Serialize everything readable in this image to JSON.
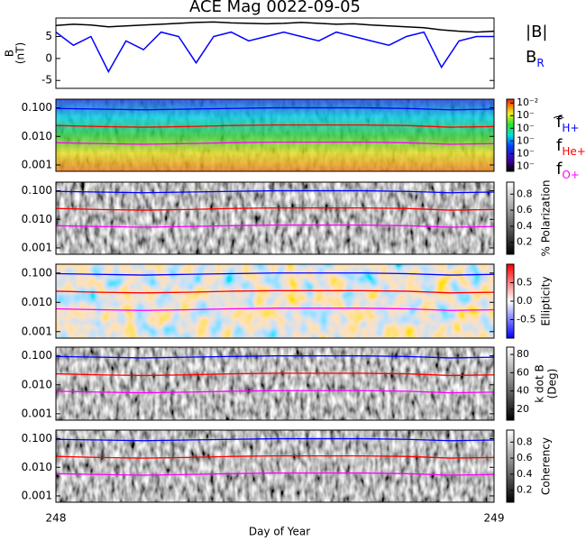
{
  "title": "ACE Mag 0022-09-05",
  "x_label": "Day of Year",
  "xlim": [
    248,
    249
  ],
  "xticks": [
    248,
    249
  ],
  "chart_data": [
    {
      "type": "line",
      "ylabel": "B",
      "ylabel_units": "(nT)",
      "ylim": [
        -6.8,
        9.2
      ],
      "yticks": [
        -5,
        0,
        5
      ],
      "x": [
        248,
        248.04,
        248.08,
        248.12,
        248.16,
        248.2,
        248.24,
        248.28,
        248.32,
        248.36,
        248.4,
        248.44,
        248.48,
        248.52,
        248.56,
        248.6,
        248.64,
        248.68,
        248.72,
        248.76,
        248.8,
        248.84,
        248.88,
        248.92,
        248.96,
        249
      ],
      "series": [
        {
          "name": "|B|",
          "color": "#000000",
          "values": [
            7.5,
            7.8,
            7.6,
            7.2,
            7.4,
            7.6,
            7.8,
            8,
            8.2,
            8.3,
            8.1,
            8,
            7.9,
            8,
            8.2,
            8,
            7.8,
            7.9,
            7.6,
            7.4,
            7.2,
            7,
            6.5,
            6.2,
            6,
            6.2
          ]
        },
        {
          "name": "B",
          "subscript": "R",
          "color": "#0000ff",
          "values": [
            6,
            3,
            5,
            -3,
            4,
            2,
            6,
            5,
            -1,
            5,
            6,
            4,
            5,
            6,
            5,
            4,
            6,
            5,
            4,
            3,
            5,
            6,
            -2,
            4,
            5,
            5
          ]
        }
      ]
    },
    {
      "type": "spectrogram",
      "colormap": "rainbow",
      "colorbar_label": ")",
      "log_y": true,
      "ylim": [
        0.0006,
        0.2
      ],
      "yticks": [
        0.001,
        {
          "value": 0.01,
          "label": "0.010"
        },
        {
          "value": 0.1,
          "label": "0.100"
        }
      ],
      "clim": [
        -7.4,
        -1.7
      ],
      "cticks": [
        {
          "value": -2,
          "label": "10⁻²"
        },
        {
          "value": -3,
          "label": "10⁻"
        },
        {
          "value": -4,
          "label": "10⁻"
        },
        {
          "value": -5,
          "label": "10⁻"
        },
        {
          "value": -6,
          "label": "10⁻"
        },
        {
          "value": -7,
          "label": "10⁻"
        }
      ],
      "x": [
        248,
        248.1,
        248.2,
        248.3,
        248.4,
        248.5,
        248.6,
        248.7,
        248.8,
        248.9,
        249
      ],
      "series": [
        {
          "name": "f",
          "subscript": "H+",
          "color": "#0000ff",
          "values": [
            0.095,
            0.09,
            0.085,
            0.09,
            0.095,
            0.1,
            0.1,
            0.1,
            0.095,
            0.085,
            0.09
          ]
        },
        {
          "name": "f",
          "subscript": "He+",
          "color": "#ff0000",
          "values": [
            0.024,
            0.022,
            0.021,
            0.022,
            0.024,
            0.025,
            0.025,
            0.025,
            0.024,
            0.021,
            0.022
          ]
        },
        {
          "name": "f",
          "subscript": "O+",
          "color": "#ff00ff",
          "values": [
            0.006,
            0.0056,
            0.0053,
            0.0056,
            0.006,
            0.0063,
            0.0063,
            0.0063,
            0.006,
            0.0053,
            0.0056
          ]
        }
      ]
    },
    {
      "type": "spectrogram",
      "colormap": "gray",
      "colorbar_label": "% Polarization",
      "log_y": true,
      "ylim": [
        0.0006,
        0.2
      ],
      "yticks": [
        0.001,
        {
          "value": 0.01,
          "label": "0.010"
        },
        {
          "value": 0.1,
          "label": "0.100"
        }
      ],
      "clim": [
        0.05,
        0.95
      ],
      "cticks": [
        0.2,
        0.4,
        0.6,
        0.8
      ],
      "x": [
        248,
        248.1,
        248.2,
        248.3,
        248.4,
        248.5,
        248.6,
        248.7,
        248.8,
        248.9,
        249
      ],
      "series": [
        {
          "color": "#0000ff",
          "values": [
            0.095,
            0.09,
            0.085,
            0.09,
            0.095,
            0.1,
            0.1,
            0.1,
            0.095,
            0.085,
            0.09
          ]
        },
        {
          "color": "#ff0000",
          "values": [
            0.024,
            0.022,
            0.021,
            0.022,
            0.024,
            0.025,
            0.025,
            0.025,
            0.024,
            0.021,
            0.022
          ]
        },
        {
          "color": "#ff00ff",
          "values": [
            0.006,
            0.0056,
            0.0053,
            0.0056,
            0.006,
            0.0063,
            0.0063,
            0.0063,
            0.006,
            0.0053,
            0.0056
          ]
        }
      ]
    },
    {
      "type": "spectrogram",
      "colormap": "bwr",
      "colorbar_label": "Ellipticity",
      "log_y": true,
      "ylim": [
        0.0006,
        0.2
      ],
      "yticks": [
        0.001,
        {
          "value": 0.01,
          "label": "0.010"
        },
        {
          "value": 0.1,
          "label": "0.100"
        }
      ],
      "clim": [
        -1,
        1
      ],
      "cticks": [
        -0.5,
        {
          "value": 0,
          "label": "0.0"
        },
        0.5
      ],
      "x": [
        248,
        248.1,
        248.2,
        248.3,
        248.4,
        248.5,
        248.6,
        248.7,
        248.8,
        248.9,
        249
      ],
      "series": [
        {
          "color": "#0000ff",
          "values": [
            0.095,
            0.09,
            0.085,
            0.09,
            0.095,
            0.1,
            0.1,
            0.1,
            0.095,
            0.085,
            0.09
          ]
        },
        {
          "color": "#ff0000",
          "values": [
            0.024,
            0.022,
            0.021,
            0.022,
            0.024,
            0.025,
            0.025,
            0.025,
            0.024,
            0.021,
            0.022
          ]
        },
        {
          "color": "#ff00ff",
          "values": [
            0.006,
            0.0056,
            0.0053,
            0.0056,
            0.006,
            0.0063,
            0.0063,
            0.0063,
            0.006,
            0.0053,
            0.0056
          ]
        }
      ]
    },
    {
      "type": "spectrogram",
      "colormap": "gray",
      "colorbar_label": "k dot B",
      "colorbar_units": "(Deg)",
      "log_y": true,
      "ylim": [
        0.0006,
        0.2
      ],
      "yticks": [
        0.001,
        {
          "value": 0.01,
          "label": "0.010"
        },
        {
          "value": 0.1,
          "label": "0.100"
        }
      ],
      "clim": [
        8,
        88
      ],
      "cticks": [
        20,
        40,
        60,
        80
      ],
      "x": [
        248,
        248.1,
        248.2,
        248.3,
        248.4,
        248.5,
        248.6,
        248.7,
        248.8,
        248.9,
        249
      ],
      "series": [
        {
          "color": "#0000ff",
          "values": [
            0.095,
            0.09,
            0.085,
            0.09,
            0.095,
            0.1,
            0.1,
            0.1,
            0.095,
            0.085,
            0.09
          ]
        },
        {
          "color": "#ff0000",
          "values": [
            0.024,
            0.022,
            0.021,
            0.022,
            0.024,
            0.025,
            0.025,
            0.025,
            0.024,
            0.021,
            0.022
          ]
        },
        {
          "color": "#ff00ff",
          "values": [
            0.006,
            0.0056,
            0.0053,
            0.0056,
            0.006,
            0.0063,
            0.0063,
            0.0063,
            0.006,
            0.0053,
            0.0056
          ]
        }
      ]
    },
    {
      "type": "spectrogram",
      "colormap": "gray",
      "colorbar_label": "Coherency",
      "log_y": true,
      "ylim": [
        0.0006,
        0.2
      ],
      "yticks": [
        0.001,
        {
          "value": 0.01,
          "label": "0.010"
        },
        {
          "value": 0.1,
          "label": "0.100"
        }
      ],
      "clim": [
        0.05,
        0.95
      ],
      "cticks": [
        0.2,
        0.4,
        0.6,
        0.8
      ],
      "x": [
        248,
        248.1,
        248.2,
        248.3,
        248.4,
        248.5,
        248.6,
        248.7,
        248.8,
        248.9,
        249
      ],
      "series": [
        {
          "color": "#0000ff",
          "values": [
            0.095,
            0.09,
            0.085,
            0.09,
            0.095,
            0.1,
            0.1,
            0.1,
            0.095,
            0.085,
            0.09
          ]
        },
        {
          "color": "#ff0000",
          "values": [
            0.024,
            0.022,
            0.021,
            0.022,
            0.024,
            0.025,
            0.025,
            0.025,
            0.024,
            0.021,
            0.022
          ]
        },
        {
          "color": "#ff00ff",
          "values": [
            0.006,
            0.0056,
            0.0053,
            0.0056,
            0.006,
            0.0063,
            0.0063,
            0.0063,
            0.006,
            0.0053,
            0.0056
          ]
        }
      ]
    }
  ]
}
